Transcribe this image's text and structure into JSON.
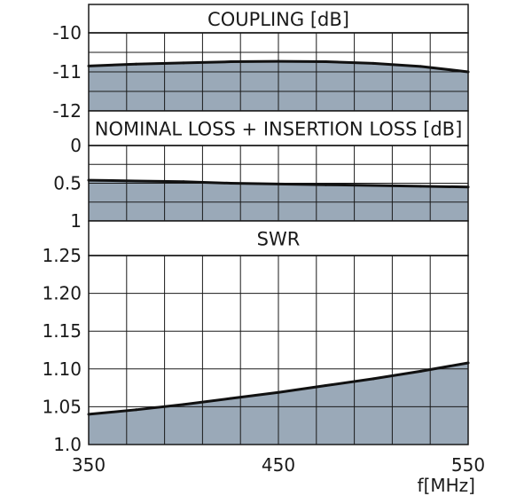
{
  "colors": {
    "fill": "#9aa9b8",
    "grid": "#1a1a1a",
    "line": "#111111",
    "header_bg": "#ffffff"
  },
  "chart_data": [
    {
      "type": "area",
      "title": "COUPLING [dB]",
      "ylim": [
        -12,
        -10
      ],
      "yticks": [
        -10,
        -11,
        -12
      ],
      "ytick_labels": [
        "-10",
        "-11",
        "-12"
      ],
      "ygrid": [
        -10,
        -10.5,
        -11,
        -11.5,
        -12
      ],
      "x": [
        350,
        375,
        400,
        425,
        450,
        475,
        500,
        525,
        550
      ],
      "values": [
        -10.85,
        -10.8,
        -10.77,
        -10.74,
        -10.73,
        -10.74,
        -10.78,
        -10.86,
        -11.0
      ]
    },
    {
      "type": "area",
      "title": "NOMINAL LOSS + INSERTION LOSS [dB]",
      "ylim": [
        1,
        0
      ],
      "yticks": [
        0,
        0.5,
        1
      ],
      "ytick_labels": [
        "0",
        "0.5",
        "1"
      ],
      "ygrid": [
        0,
        0.25,
        0.5,
        0.75,
        1
      ],
      "x": [
        350,
        375,
        400,
        425,
        450,
        475,
        500,
        525,
        550
      ],
      "values": [
        0.46,
        0.47,
        0.48,
        0.5,
        0.51,
        0.52,
        0.53,
        0.54,
        0.55
      ]
    },
    {
      "type": "area",
      "title": "SWR",
      "xlabel": "f[MHz]",
      "ylim": [
        1.0,
        1.25
      ],
      "yticks": [
        1.25,
        1.2,
        1.15,
        1.1,
        1.05,
        1.0
      ],
      "ytick_labels": [
        "1.25",
        "1.20",
        "1.15",
        "1.10",
        "1.05",
        "1.0"
      ],
      "ygrid": [
        1.0,
        1.05,
        1.1,
        1.15,
        1.2,
        1.25
      ],
      "x": [
        350,
        375,
        400,
        425,
        450,
        475,
        500,
        525,
        550
      ],
      "values": [
        1.04,
        1.046,
        1.053,
        1.061,
        1.069,
        1.078,
        1.087,
        1.097,
        1.108
      ]
    }
  ],
  "x_axis": {
    "range": [
      350,
      550
    ],
    "grid_step": 20,
    "tick_values": [
      350,
      450,
      550
    ],
    "tick_labels": [
      "350",
      "450",
      "550"
    ],
    "label": "f[MHz]"
  }
}
